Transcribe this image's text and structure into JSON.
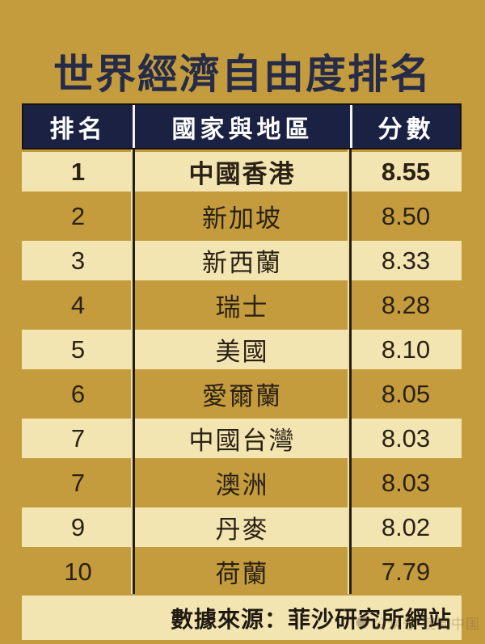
{
  "title": "世界經濟自由度排名",
  "table": {
    "headers": [
      "排名",
      "國家與地區",
      "分數"
    ],
    "rows": [
      {
        "rank": "1",
        "region": "中國香港",
        "score": "8.55"
      },
      {
        "rank": "2",
        "region": "新加坡",
        "score": "8.50"
      },
      {
        "rank": "3",
        "region": "新西蘭",
        "score": "8.33"
      },
      {
        "rank": "4",
        "region": "瑞士",
        "score": "8.28"
      },
      {
        "rank": "5",
        "region": "美國",
        "score": "8.10"
      },
      {
        "rank": "6",
        "region": "愛爾蘭",
        "score": "8.05"
      },
      {
        "rank": "7",
        "region": "中國台灣",
        "score": "8.03"
      },
      {
        "rank": "7",
        "region": "澳洲",
        "score": "8.03"
      },
      {
        "rank": "9",
        "region": "丹麥",
        "score": "8.02"
      },
      {
        "rank": "10",
        "region": "荷蘭",
        "score": "7.79"
      }
    ]
  },
  "footer": {
    "source_label": "數據來源：菲沙研究所網站"
  },
  "watermark": {
    "text": "公众号·澳闻中国"
  },
  "colors": {
    "background_gold": "#c49c3e",
    "row_cream": "#f3e5b2",
    "header_navy": "#1b2142",
    "title_navy": "#262b47",
    "body_text": "#2a2114",
    "header_text": "#ffffff",
    "divider_dark": "#241d12"
  }
}
